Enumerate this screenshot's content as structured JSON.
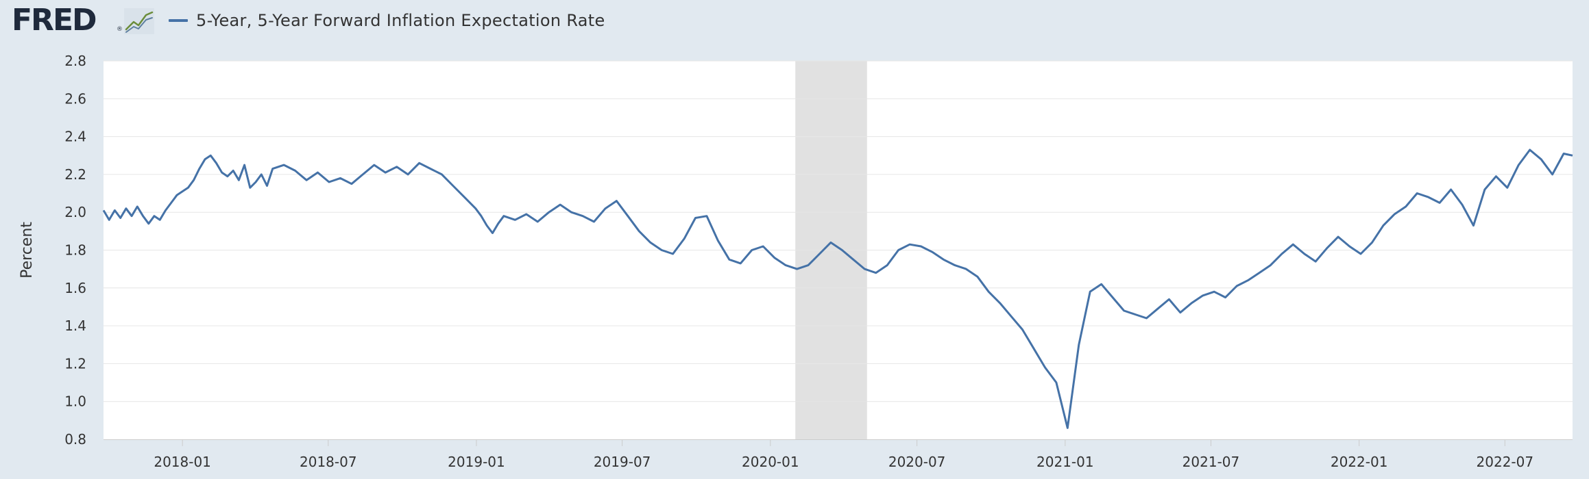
{
  "header": {
    "logo_text": "FRED",
    "logo_mark": "®",
    "logo_icon": "line-chart-icon",
    "legend_label": "5-Year, 5-Year Forward Inflation Expectation Rate"
  },
  "colors": {
    "background": "#e1e9f0",
    "plot_background": "#ffffff",
    "series": "#4572a7",
    "recession": "#e1e1e1",
    "grid": "#e6e6e6"
  },
  "chart_data": {
    "type": "line",
    "title": "",
    "xlabel": "",
    "ylabel": "Percent",
    "ylim": [
      0.8,
      2.8
    ],
    "yticks": [
      0.8,
      1.0,
      1.2,
      1.4,
      1.6,
      1.8,
      2.0,
      2.2,
      2.4,
      2.6,
      2.8
    ],
    "ytick_labels": [
      "0.8",
      "1.0",
      "1.2",
      "1.4",
      "1.6",
      "1.8",
      "2.0",
      "2.2",
      "2.4",
      "2.6",
      "2.8"
    ],
    "xlim": [
      "2017-09-25",
      "2022-09-23"
    ],
    "xticks": [
      "2018-01-01",
      "2018-07-01",
      "2019-01-01",
      "2019-07-01",
      "2020-01-01",
      "2020-07-01",
      "2021-01-01",
      "2021-07-01",
      "2022-01-01",
      "2022-07-01"
    ],
    "xtick_labels": [
      "2018-01",
      "2018-07",
      "2019-01",
      "2019-07",
      "2020-01",
      "2020-07",
      "2021-01",
      "2021-07",
      "2022-01",
      "2022-07"
    ],
    "grid": true,
    "legend_position": "top-left",
    "recession_shading": [
      {
        "start": "2020-02-01",
        "end": "2020-04-30"
      }
    ],
    "series": [
      {
        "name": "5-Year, 5-Year Forward Inflation Expectation Rate",
        "points": [
          [
            "2017-09-25",
            2.01
          ],
          [
            "2017-10-02",
            1.96
          ],
          [
            "2017-10-09",
            2.01
          ],
          [
            "2017-10-16",
            1.97
          ],
          [
            "2017-10-23",
            2.02
          ],
          [
            "2017-10-30",
            1.98
          ],
          [
            "2017-11-06",
            2.03
          ],
          [
            "2017-11-13",
            1.98
          ],
          [
            "2017-11-20",
            1.94
          ],
          [
            "2017-11-27",
            1.98
          ],
          [
            "2017-12-04",
            1.96
          ],
          [
            "2017-12-11",
            2.01
          ],
          [
            "2017-12-18",
            2.05
          ],
          [
            "2017-12-25",
            2.09
          ],
          [
            "2018-01-01",
            2.11
          ],
          [
            "2018-01-08",
            2.13
          ],
          [
            "2018-01-15",
            2.17
          ],
          [
            "2018-01-22",
            2.23
          ],
          [
            "2018-01-29",
            2.28
          ],
          [
            "2018-02-05",
            2.3
          ],
          [
            "2018-02-12",
            2.26
          ],
          [
            "2018-02-19",
            2.21
          ],
          [
            "2018-02-26",
            2.19
          ],
          [
            "2018-03-05",
            2.22
          ],
          [
            "2018-03-12",
            2.17
          ],
          [
            "2018-03-19",
            2.25
          ],
          [
            "2018-03-26",
            2.13
          ],
          [
            "2018-04-02",
            2.16
          ],
          [
            "2018-04-09",
            2.2
          ],
          [
            "2018-04-16",
            2.14
          ],
          [
            "2018-04-23",
            2.23
          ],
          [
            "2018-05-07",
            2.25
          ],
          [
            "2018-05-21",
            2.22
          ],
          [
            "2018-06-04",
            2.17
          ],
          [
            "2018-06-18",
            2.21
          ],
          [
            "2018-07-02",
            2.16
          ],
          [
            "2018-07-16",
            2.18
          ],
          [
            "2018-07-30",
            2.15
          ],
          [
            "2018-08-13",
            2.2
          ],
          [
            "2018-08-27",
            2.25
          ],
          [
            "2018-09-10",
            2.21
          ],
          [
            "2018-09-24",
            2.24
          ],
          [
            "2018-10-08",
            2.2
          ],
          [
            "2018-10-22",
            2.26
          ],
          [
            "2018-11-05",
            2.23
          ],
          [
            "2018-11-19",
            2.2
          ],
          [
            "2018-12-03",
            2.14
          ],
          [
            "2018-12-17",
            2.08
          ],
          [
            "2018-12-31",
            2.02
          ],
          [
            "2019-01-07",
            1.98
          ],
          [
            "2019-01-14",
            1.93
          ],
          [
            "2019-01-21",
            1.89
          ],
          [
            "2019-01-28",
            1.94
          ],
          [
            "2019-02-04",
            1.98
          ],
          [
            "2019-02-18",
            1.96
          ],
          [
            "2019-03-04",
            1.99
          ],
          [
            "2019-03-18",
            1.95
          ],
          [
            "2019-04-01",
            2.0
          ],
          [
            "2019-04-15",
            2.04
          ],
          [
            "2019-04-29",
            2.0
          ],
          [
            "2019-05-13",
            1.98
          ],
          [
            "2019-05-27",
            1.95
          ],
          [
            "2019-06-10",
            2.02
          ],
          [
            "2019-06-24",
            2.06
          ],
          [
            "2019-07-08",
            1.98
          ],
          [
            "2019-07-22",
            1.9
          ],
          [
            "2019-08-05",
            1.84
          ],
          [
            "2019-08-19",
            1.8
          ],
          [
            "2019-09-02",
            1.78
          ],
          [
            "2019-09-16",
            1.86
          ],
          [
            "2019-09-30",
            1.97
          ],
          [
            "2019-10-14",
            1.98
          ],
          [
            "2019-10-28",
            1.85
          ],
          [
            "2019-11-11",
            1.75
          ],
          [
            "2019-11-25",
            1.73
          ],
          [
            "2019-12-09",
            1.8
          ],
          [
            "2019-12-23",
            1.82
          ],
          [
            "2020-01-06",
            1.76
          ],
          [
            "2020-01-20",
            1.72
          ],
          [
            "2020-02-03",
            1.7
          ],
          [
            "2020-02-17",
            1.72
          ],
          [
            "2020-03-02",
            1.78
          ],
          [
            "2020-03-16",
            1.84
          ],
          [
            "2020-03-30",
            1.8
          ],
          [
            "2020-04-13",
            1.75
          ],
          [
            "2020-04-27",
            1.7
          ],
          [
            "2020-05-11",
            1.68
          ],
          [
            "2020-05-25",
            1.72
          ],
          [
            "2020-06-08",
            1.8
          ],
          [
            "2020-06-22",
            1.83
          ],
          [
            "2020-07-06",
            1.82
          ],
          [
            "2020-07-20",
            1.79
          ],
          [
            "2020-08-03",
            1.75
          ],
          [
            "2020-08-17",
            1.72
          ],
          [
            "2020-08-31",
            1.7
          ],
          [
            "2020-09-14",
            1.66
          ],
          [
            "2020-09-28",
            1.58
          ],
          [
            "2020-10-12",
            1.52
          ],
          [
            "2020-10-26",
            1.45
          ],
          [
            "2020-11-09",
            1.38
          ],
          [
            "2020-11-23",
            1.28
          ],
          [
            "2020-12-07",
            1.18
          ],
          [
            "2020-12-21",
            1.1
          ],
          [
            "2021-01-04",
            0.86
          ],
          [
            "2021-01-18",
            1.3
          ],
          [
            "2021-02-01",
            1.58
          ],
          [
            "2021-02-15",
            1.62
          ],
          [
            "2021-03-01",
            1.55
          ],
          [
            "2021-03-15",
            1.48
          ],
          [
            "2021-03-29",
            1.46
          ],
          [
            "2021-04-12",
            1.44
          ],
          [
            "2021-04-26",
            1.49
          ],
          [
            "2021-05-10",
            1.54
          ],
          [
            "2021-05-24",
            1.47
          ],
          [
            "2021-06-07",
            1.52
          ],
          [
            "2021-06-21",
            1.56
          ],
          [
            "2021-07-05",
            1.58
          ],
          [
            "2021-07-19",
            1.55
          ],
          [
            "2021-08-02",
            1.61
          ],
          [
            "2021-08-16",
            1.64
          ],
          [
            "2021-08-30",
            1.68
          ],
          [
            "2021-09-13",
            1.72
          ],
          [
            "2021-09-27",
            1.78
          ],
          [
            "2021-10-11",
            1.83
          ],
          [
            "2021-10-25",
            1.78
          ],
          [
            "2021-11-08",
            1.74
          ],
          [
            "2021-11-22",
            1.81
          ],
          [
            "2021-12-06",
            1.87
          ],
          [
            "2021-12-20",
            1.82
          ],
          [
            "2022-01-03",
            1.78
          ],
          [
            "2022-01-17",
            1.84
          ],
          [
            "2022-01-31",
            1.93
          ],
          [
            "2022-02-14",
            1.99
          ],
          [
            "2022-02-28",
            2.03
          ],
          [
            "2022-03-14",
            2.1
          ],
          [
            "2022-03-28",
            2.08
          ],
          [
            "2022-04-11",
            2.05
          ],
          [
            "2022-04-25",
            2.12
          ],
          [
            "2022-05-09",
            2.04
          ],
          [
            "2022-05-23",
            1.93
          ],
          [
            "2022-06-06",
            2.12
          ],
          [
            "2022-06-20",
            2.19
          ],
          [
            "2022-07-04",
            2.13
          ],
          [
            "2022-07-18",
            2.25
          ],
          [
            "2022-08-01",
            2.33
          ],
          [
            "2022-08-15",
            2.28
          ],
          [
            "2022-08-29",
            2.2
          ],
          [
            "2022-09-12",
            2.31
          ],
          [
            "2022-09-23",
            2.3
          ]
        ]
      }
    ]
  }
}
